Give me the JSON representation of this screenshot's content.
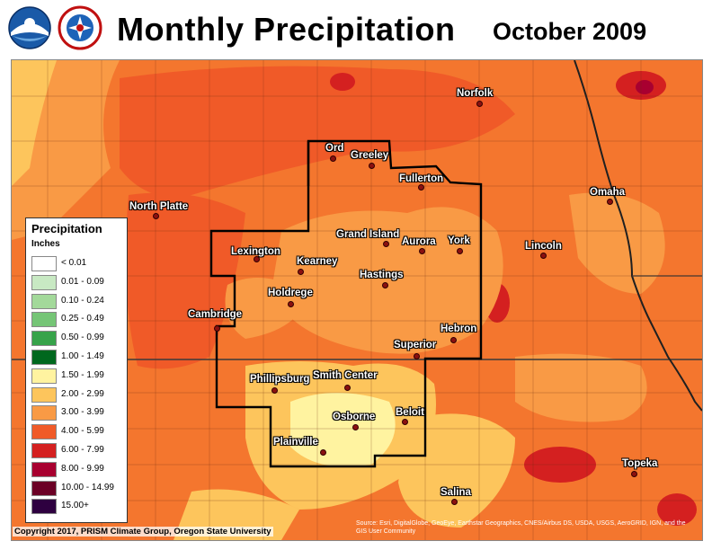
{
  "header": {
    "title": "Monthly Precipitation",
    "period": "October 2009"
  },
  "logos": [
    "noaa-logo",
    "nws-logo"
  ],
  "legend": {
    "title": "Precipitation",
    "units": "Inches",
    "classes": [
      {
        "label": "< 0.01",
        "color": "#ffffff"
      },
      {
        "label": "0.01 - 0.09",
        "color": "#c8e9c3"
      },
      {
        "label": "0.10 - 0.24",
        "color": "#a3d99a"
      },
      {
        "label": "0.25 - 0.49",
        "color": "#75c576"
      },
      {
        "label": "0.50 - 0.99",
        "color": "#37a34a"
      },
      {
        "label": "1.00 - 1.49",
        "color": "#00681e"
      },
      {
        "label": "1.50 - 1.99",
        "color": "#fff3a0"
      },
      {
        "label": "2.00 - 2.99",
        "color": "#fdc55c"
      },
      {
        "label": "3.00 - 3.99",
        "color": "#f99a45"
      },
      {
        "label": "4.00 - 5.99",
        "color": "#f05a28"
      },
      {
        "label": "6.00 - 7.99",
        "color": "#d42020"
      },
      {
        "label": "8.00 - 9.99",
        "color": "#a80030"
      },
      {
        "label": "10.00 - 14.99",
        "color": "#6b0025"
      },
      {
        "label": "15.00+",
        "color": "#2e0040"
      }
    ]
  },
  "cities": [
    {
      "name": "Norfolk"
    },
    {
      "name": "North Platte"
    },
    {
      "name": "Ord"
    },
    {
      "name": "Greeley"
    },
    {
      "name": "Fullerton"
    },
    {
      "name": "Omaha"
    },
    {
      "name": "Grand Island"
    },
    {
      "name": "Aurora"
    },
    {
      "name": "York"
    },
    {
      "name": "Lincoln"
    },
    {
      "name": "Lexington"
    },
    {
      "name": "Kearney"
    },
    {
      "name": "Hastings"
    },
    {
      "name": "Holdrege"
    },
    {
      "name": "Cambridge"
    },
    {
      "name": "Hebron"
    },
    {
      "name": "Superior"
    },
    {
      "name": "Phillipsburg"
    },
    {
      "name": "Smith Center"
    },
    {
      "name": "Osborne"
    },
    {
      "name": "Beloit"
    },
    {
      "name": "Plainville"
    },
    {
      "name": "Topeka"
    },
    {
      "name": "Salina"
    }
  ],
  "footer": {
    "copyright": "Copyright 2017, PRISM Climate Group, Oregon State University",
    "source": "Source: Esri, DigitalGlobe, GeoEye, Earthstar Geographics, CNES/Airbus DS, USDA, USGS, AeroGRID, IGN, and the GIS User Community"
  }
}
